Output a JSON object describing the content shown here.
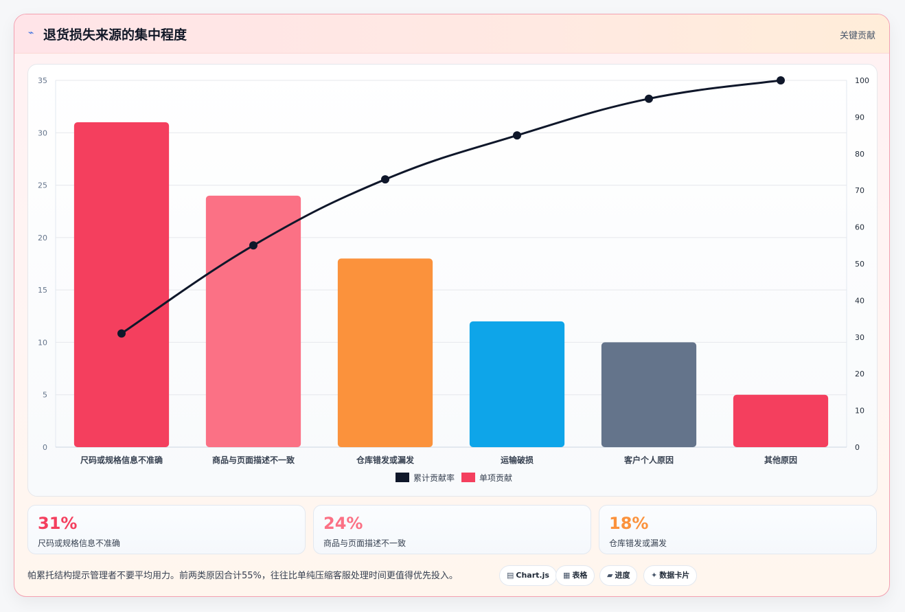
{
  "header": {
    "icon": "⌁",
    "title": "退货损失来源的集中程度",
    "tag": "关键贡献"
  },
  "chart_data": {
    "type": "bar",
    "categories": [
      "尺码或规格信息不准确",
      "商品与页面描述不一致",
      "仓库错发或漏发",
      "运输破损",
      "客户个人原因",
      "其他原因"
    ],
    "series": [
      {
        "name": "单项贡献",
        "type": "bar",
        "axis": "left",
        "values": [
          31,
          24,
          18,
          12,
          10,
          5
        ],
        "colors": [
          "#f43f5e",
          "#fb7185",
          "#fb923c",
          "#0ea5e9",
          "#64748b",
          "#f43f5e"
        ]
      },
      {
        "name": "累计贡献率",
        "type": "line",
        "axis": "right",
        "values": [
          31,
          55,
          73,
          85,
          95,
          100
        ],
        "color": "#0f172a"
      }
    ],
    "y_left": {
      "min": 0,
      "max": 35,
      "ticks": [
        0,
        5,
        10,
        15,
        20,
        25,
        30,
        35
      ]
    },
    "y_right": {
      "min": 0,
      "max": 100,
      "ticks": [
        0,
        10,
        20,
        30,
        40,
        50,
        60,
        70,
        80,
        90,
        100
      ]
    },
    "legend_position": "bottom",
    "legend": [
      {
        "label": "累计贡献率",
        "color": "#0f172a"
      },
      {
        "label": "单项贡献",
        "color": "#f43f5e"
      }
    ],
    "grid": true
  },
  "stats": [
    {
      "value": "31%",
      "label": "尺码或规格信息不准确",
      "color": "#f43f5e"
    },
    {
      "value": "24%",
      "label": "商品与页面描述不一致",
      "color": "#fb7185"
    },
    {
      "value": "18%",
      "label": "仓库错发或漏发",
      "color": "#fb923c"
    }
  ],
  "footer": {
    "note": "帕累托结构提示管理者不要平均用力。前两类原因合计55%，往往比单纯压缩客服处理时间更值得优先投入。",
    "chips": [
      {
        "icon": "▤",
        "label": "Chart.js"
      },
      {
        "icon": "▦",
        "label": "表格"
      },
      {
        "icon": "▰",
        "label": "进度"
      },
      {
        "icon": "✦",
        "label": "数据卡片"
      }
    ]
  }
}
